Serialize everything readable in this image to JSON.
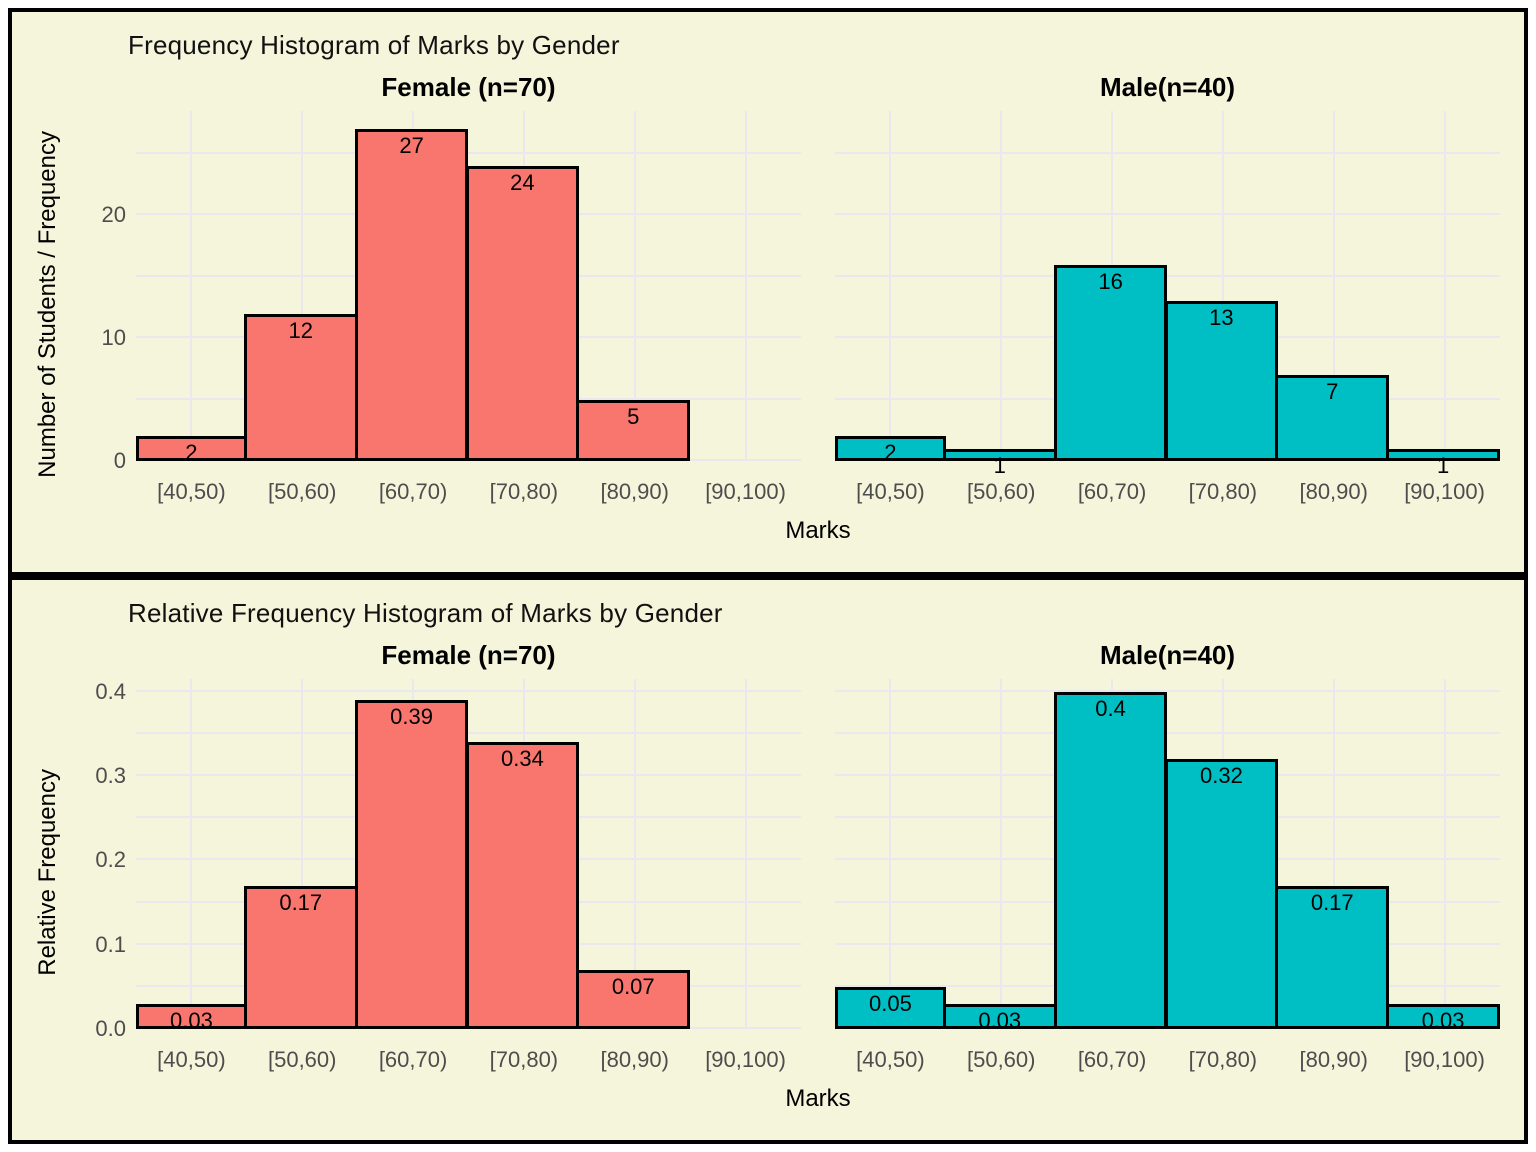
{
  "ui": {
    "page_background": "#FFFFFF",
    "panel_background": "#F5F5DC",
    "panel_border_color": "#000000",
    "grid_color": "#E8E8EE",
    "axis_text_color": "#4D4D4D",
    "title_color": "#000000",
    "bar_border_color": "#000000",
    "female_color": "#F8766D",
    "male_color": "#00BFC4"
  },
  "chart_data": [
    {
      "type": "bar",
      "title": "Frequency Histogram of Marks by Gender",
      "xlabel": "Marks",
      "ylabel": "Number of Students / Frequency",
      "categories": [
        "[40,50)",
        "[50,60)",
        "[60,70)",
        "[70,80)",
        "[80,90)",
        "[90,100)"
      ],
      "ylim": [
        0,
        28.5
      ],
      "grid": true,
      "legend_position": "none",
      "gridlines": [
        0,
        5,
        10,
        15,
        20,
        25
      ],
      "yticks": [
        {
          "value": 0,
          "label": "0"
        },
        {
          "value": 10,
          "label": "10"
        },
        {
          "value": 20,
          "label": "20"
        }
      ],
      "facets": [
        {
          "label": "Female (n=70)",
          "color": "#F8766D",
          "values": [
            2,
            12,
            27,
            24,
            5,
            null
          ],
          "value_labels": [
            "2",
            "12",
            "27",
            "24",
            "5",
            ""
          ]
        },
        {
          "label": "Male(n=40)",
          "color": "#00BFC4",
          "values": [
            2,
            1,
            16,
            13,
            7,
            1
          ],
          "value_labels": [
            "2",
            "1",
            "16",
            "13",
            "7",
            "1"
          ]
        }
      ]
    },
    {
      "type": "bar",
      "title": "Relative Frequency Histogram of Marks by Gender",
      "xlabel": "Marks",
      "ylabel": "Relative Frequency",
      "categories": [
        "[40,50)",
        "[50,60)",
        "[60,70)",
        "[70,80)",
        "[80,90)",
        "[90,100)"
      ],
      "ylim": [
        0,
        0.415
      ],
      "grid": true,
      "legend_position": "none",
      "gridlines": [
        0,
        0.05,
        0.1,
        0.15,
        0.2,
        0.25,
        0.3,
        0.35,
        0.4
      ],
      "yticks": [
        {
          "value": 0,
          "label": "0.0"
        },
        {
          "value": 0.1,
          "label": "0.1"
        },
        {
          "value": 0.2,
          "label": "0.2"
        },
        {
          "value": 0.3,
          "label": "0.3"
        },
        {
          "value": 0.4,
          "label": "0.4"
        }
      ],
      "facets": [
        {
          "label": "Female (n=70)",
          "color": "#F8766D",
          "values": [
            0.03,
            0.17,
            0.39,
            0.34,
            0.07,
            null
          ],
          "value_labels": [
            "0.03",
            "0.17",
            "0.39",
            "0.34",
            "0.07",
            ""
          ]
        },
        {
          "label": "Male(n=40)",
          "color": "#00BFC4",
          "values": [
            0.05,
            0.03,
            0.4,
            0.32,
            0.17,
            0.03
          ],
          "value_labels": [
            "0.05",
            "0.03",
            "0.4",
            "0.32",
            "0.17",
            "0.03"
          ]
        }
      ]
    }
  ]
}
